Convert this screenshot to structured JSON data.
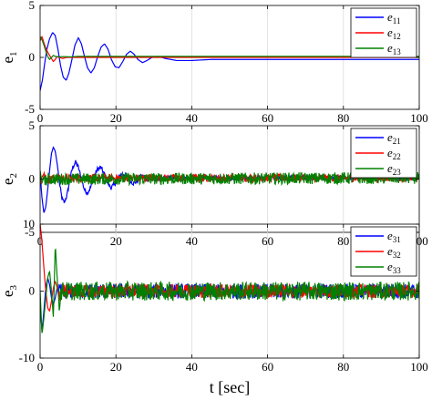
{
  "chart_data": [
    {
      "type": "line",
      "ylabel": "e1",
      "ylabel_main": "e",
      "ylabel_sub": "1",
      "xlim": [
        0,
        100
      ],
      "ylim": [
        -5,
        5
      ],
      "xticks": [
        0,
        20,
        40,
        60,
        80,
        100
      ],
      "yticks": [
        5,
        0,
        -5
      ],
      "grid": true,
      "legend_position": "top-right",
      "series": [
        {
          "name": "e11",
          "sym": "e",
          "sub": "11",
          "color": "#0000ff",
          "points": [
            [
              0,
              -3.2
            ],
            [
              0.6,
              -2.2
            ],
            [
              1.2,
              -0.6
            ],
            [
              1.8,
              0.8
            ],
            [
              2.5,
              1.8
            ],
            [
              3.3,
              2.4
            ],
            [
              4.0,
              2.1
            ],
            [
              4.7,
              0.8
            ],
            [
              5.4,
              -0.8
            ],
            [
              6.1,
              -1.9
            ],
            [
              6.9,
              -2.2
            ],
            [
              7.6,
              -1.5
            ],
            [
              8.4,
              -0.2
            ],
            [
              9.2,
              1.2
            ],
            [
              10.1,
              1.9
            ],
            [
              10.9,
              1.3
            ],
            [
              11.7,
              0.1
            ],
            [
              12.5,
              -1.0
            ],
            [
              13.4,
              -1.5
            ],
            [
              14.3,
              -1.0
            ],
            [
              15.2,
              0.1
            ],
            [
              16.1,
              1.0
            ],
            [
              17.0,
              1.3
            ],
            [
              17.9,
              0.8
            ],
            [
              18.8,
              -0.2
            ],
            [
              19.8,
              -0.9
            ],
            [
              20.8,
              -1.0
            ],
            [
              21.8,
              -0.4
            ],
            [
              22.8,
              0.3
            ],
            [
              23.8,
              0.6
            ],
            [
              24.8,
              0.3
            ],
            [
              25.8,
              -0.2
            ],
            [
              27,
              -0.5
            ],
            [
              28.2,
              -0.3
            ],
            [
              29.5,
              0.0
            ],
            [
              31,
              0.1
            ],
            [
              33,
              -0.1
            ],
            [
              36,
              -0.3
            ],
            [
              40,
              -0.3
            ],
            [
              45,
              -0.2
            ],
            [
              50,
              -0.2
            ],
            [
              60,
              -0.2
            ],
            [
              70,
              -0.2
            ],
            [
              80,
              -0.2
            ],
            [
              90,
              -0.2
            ],
            [
              100,
              -0.2
            ]
          ]
        },
        {
          "name": "e12",
          "sym": "e",
          "sub": "12",
          "color": "#ff0000",
          "points": [
            [
              0,
              1.6
            ],
            [
              0.5,
              2.0
            ],
            [
              1.0,
              1.4
            ],
            [
              1.5,
              0.9
            ],
            [
              2.0,
              0.5
            ],
            [
              2.5,
              0.2
            ],
            [
              3.0,
              -0.1
            ],
            [
              3.5,
              -0.4
            ],
            [
              4.0,
              -0.2
            ],
            [
              4.5,
              0.1
            ],
            [
              5.0,
              0.0
            ],
            [
              6,
              -0.1
            ],
            [
              7,
              0.0
            ],
            [
              8,
              0.0
            ],
            [
              10,
              0.0
            ],
            [
              100,
              0.0
            ]
          ]
        },
        {
          "name": "e13",
          "sym": "e",
          "sub": "13",
          "color": "#008000",
          "points": [
            [
              0,
              2.0
            ],
            [
              0.5,
              1.7
            ],
            [
              1.0,
              1.2
            ],
            [
              1.5,
              0.6
            ],
            [
              2.0,
              0.1
            ],
            [
              2.5,
              -0.2
            ],
            [
              3.0,
              0.0
            ],
            [
              3.5,
              0.2
            ],
            [
              4.0,
              0.1
            ],
            [
              5,
              0.05
            ],
            [
              6,
              0.08
            ],
            [
              8,
              0.05
            ],
            [
              10,
              0.1
            ],
            [
              15,
              0.1
            ],
            [
              100,
              0.1
            ]
          ]
        }
      ]
    },
    {
      "type": "line",
      "ylabel": "e2",
      "ylabel_main": "e",
      "ylabel_sub": "2",
      "xlim": [
        0,
        100
      ],
      "ylim": [
        -5,
        5
      ],
      "xticks": [
        0,
        20,
        40,
        60,
        80,
        100
      ],
      "yticks": [
        5,
        0,
        -5
      ],
      "grid": true,
      "legend_position": "top-right",
      "series": [
        {
          "name": "e21",
          "sym": "e",
          "sub": "21",
          "color": "#0000ff",
          "points": [
            [
              0,
              0.5
            ],
            [
              0.5,
              -1.8
            ],
            [
              1.0,
              -3.2
            ],
            [
              1.5,
              -2.6
            ],
            [
              2.0,
              -1.0
            ],
            [
              2.5,
              0.8
            ],
            [
              3.0,
              2.4
            ],
            [
              3.5,
              3.0
            ],
            [
              4.0,
              2.6
            ],
            [
              4.6,
              1.2
            ],
            [
              5.2,
              -0.6
            ],
            [
              5.8,
              -1.9
            ],
            [
              6.4,
              -2.2
            ],
            [
              7.1,
              -1.5
            ],
            [
              7.8,
              -0.2
            ],
            [
              8.5,
              1.0
            ],
            [
              9.3,
              1.6
            ],
            [
              10.1,
              1.1
            ],
            [
              10.9,
              0.0
            ],
            [
              11.7,
              -1.0
            ],
            [
              12.5,
              -1.3
            ],
            [
              13.3,
              -0.8
            ],
            [
              14.2,
              0.2
            ],
            [
              15.1,
              0.9
            ],
            [
              16.0,
              1.1
            ],
            [
              16.9,
              0.5
            ],
            [
              17.8,
              -0.4
            ],
            [
              18.7,
              -0.8
            ],
            [
              19.6,
              -0.5
            ],
            [
              20.6,
              0.1
            ],
            [
              21.6,
              0.5
            ],
            [
              22.6,
              0.4
            ],
            [
              23.6,
              -0.1
            ],
            [
              24.6,
              -0.4
            ],
            [
              25.6,
              -0.2
            ],
            [
              26.6,
              0.3
            ],
            [
              27.6,
              0.2
            ],
            [
              28.6,
              -0.1
            ],
            [
              30,
              0.1
            ],
            [
              32,
              0.0
            ],
            [
              35,
              0.1
            ],
            [
              100,
              0.1
            ]
          ],
          "noise": [
            5,
            100,
            0.22
          ]
        },
        {
          "name": "e22",
          "sym": "e",
          "sub": "22",
          "color": "#ff0000",
          "points": [
            [
              0,
              -0.5
            ],
            [
              0.5,
              0.2
            ],
            [
              1.0,
              0.5
            ],
            [
              1.5,
              0.2
            ],
            [
              2.0,
              -0.2
            ],
            [
              2.5,
              0.0
            ],
            [
              3,
              0.1
            ],
            [
              100,
              0.1
            ]
          ],
          "noise": [
            1,
            100,
            0.35
          ]
        },
        {
          "name": "e23",
          "sym": "e",
          "sub": "23",
          "color": "#008000",
          "points": [
            [
              0,
              0.8
            ],
            [
              0.5,
              -0.4
            ],
            [
              1.0,
              0.3
            ],
            [
              1.5,
              -0.2
            ],
            [
              2.0,
              0.0
            ],
            [
              100,
              0.1
            ]
          ],
          "noise": [
            1,
            100,
            0.55
          ]
        }
      ]
    },
    {
      "type": "line",
      "ylabel": "e3",
      "ylabel_main": "e",
      "ylabel_sub": "3",
      "xlim": [
        0,
        100
      ],
      "ylim": [
        -10,
        10
      ],
      "xticks": [
        0,
        20,
        40,
        60,
        80,
        100
      ],
      "yticks": [
        10,
        0,
        -10
      ],
      "grid": true,
      "legend_position": "top-right",
      "series": [
        {
          "name": "e31",
          "sym": "e",
          "sub": "31",
          "color": "#0000ff",
          "points": [
            [
              0,
              -2.0
            ],
            [
              0.5,
              -6.0
            ],
            [
              1.0,
              -3.0
            ],
            [
              1.5,
              0.5
            ],
            [
              2.0,
              2.0
            ],
            [
              2.5,
              1.0
            ],
            [
              3.0,
              -1.0
            ],
            [
              3.5,
              -2.0
            ],
            [
              4.0,
              -1.0
            ],
            [
              4.5,
              0.5
            ],
            [
              5.0,
              0.0
            ],
            [
              100,
              0.0
            ]
          ],
          "noise": [
            5,
            100,
            1.1
          ]
        },
        {
          "name": "e32",
          "sym": "e",
          "sub": "32",
          "color": "#ff0000",
          "points": [
            [
              0,
              10.0
            ],
            [
              0.4,
              8.0
            ],
            [
              0.8,
              5.0
            ],
            [
              1.2,
              2.0
            ],
            [
              1.6,
              -0.5
            ],
            [
              2.0,
              -2.5
            ],
            [
              2.5,
              -3.0
            ],
            [
              3.0,
              -1.5
            ],
            [
              3.5,
              0.5
            ],
            [
              4.0,
              1.5
            ],
            [
              4.5,
              0.5
            ],
            [
              5.0,
              -1.0
            ],
            [
              6.0,
              0.0
            ],
            [
              100,
              0.0
            ]
          ],
          "noise": [
            5,
            100,
            1.0
          ]
        },
        {
          "name": "e33",
          "sym": "e",
          "sub": "33",
          "color": "#008000",
          "points": [
            [
              0,
              0.0
            ],
            [
              0.5,
              -6.5
            ],
            [
              1.0,
              -4.0
            ],
            [
              1.5,
              -1.0
            ],
            [
              2.0,
              2.0
            ],
            [
              2.5,
              3.0
            ],
            [
              3.0,
              0.0
            ],
            [
              3.5,
              -4.0
            ],
            [
              4.0,
              7.0
            ],
            [
              4.5,
              2.0
            ],
            [
              5.0,
              -2.0
            ],
            [
              5.5,
              0.0
            ],
            [
              100,
              0.0
            ]
          ],
          "noise": [
            5,
            100,
            1.4
          ]
        }
      ]
    }
  ],
  "xlabel": "t [sec]"
}
